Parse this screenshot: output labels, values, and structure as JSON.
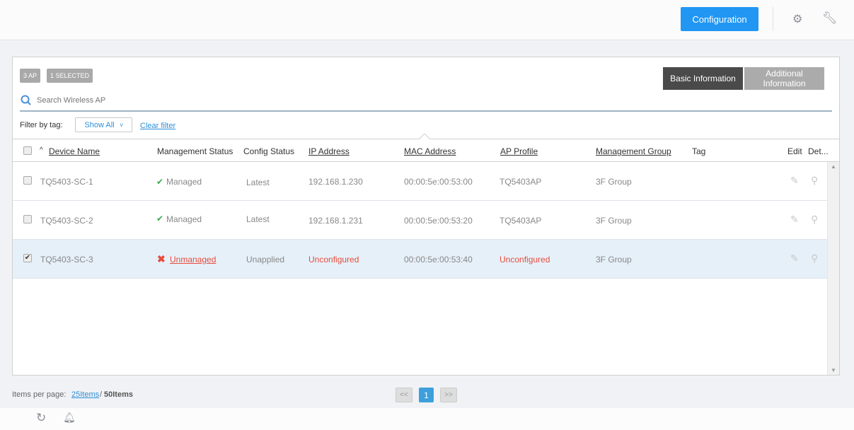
{
  "topbar": {
    "config_label": "Configuration",
    "icons": [
      "gears-icon",
      "wrench-icon"
    ]
  },
  "badges": {
    "count": "3 AP",
    "selected": "1 SELECTED"
  },
  "view_tabs": {
    "basic": "Basic Information",
    "additional": "Additional Information",
    "active": "basic"
  },
  "search": {
    "placeholder": "Search Wireless AP",
    "value": ""
  },
  "filter": {
    "label": "Filter by tag:",
    "selected": "Show All",
    "clear": "Clear filter"
  },
  "columns": [
    "Device Name",
    "Management Status",
    "Config Status",
    "IP Address",
    "MAC Address",
    "AP Profile",
    "Management Group",
    "Tag",
    "Edit",
    "Det..."
  ],
  "rows": [
    {
      "checked": false,
      "name": "TQ5403-SC-1",
      "mgmt": "Managed",
      "mgmt_ok": true,
      "config": "Latest",
      "ip": "192.168.1.230",
      "mac": "00:00:5e:00:53:00",
      "profile": "TQ5403AP",
      "group": "3F Group",
      "tag": ""
    },
    {
      "checked": false,
      "name": "TQ5403-SC-2",
      "mgmt": "Managed",
      "mgmt_ok": true,
      "config": "Latest",
      "ip": "192.168.1.231",
      "mac": "00:00:5e:00:53:20",
      "profile": "TQ5403AP",
      "group": "3F Group",
      "tag": ""
    },
    {
      "checked": true,
      "name": "TQ5403-SC-3",
      "mgmt": "Unmanaged",
      "mgmt_ok": false,
      "config": "Unapplied",
      "ip": "Unconfigured",
      "mac": "00:00:5e:00:53:40",
      "profile": "Unconfigured",
      "group": "3F Group",
      "tag": ""
    }
  ],
  "footer": {
    "items_label": "Items per page:",
    "opt25": "25Items",
    "sep": "/",
    "opt50": "50Items",
    "prev": "<<",
    "page": "1",
    "next": ">>"
  },
  "colors": {
    "accent": "#2196f3",
    "ok": "#3aa94a",
    "error": "#e74c3c",
    "selected_row": "#e6f0f9"
  }
}
